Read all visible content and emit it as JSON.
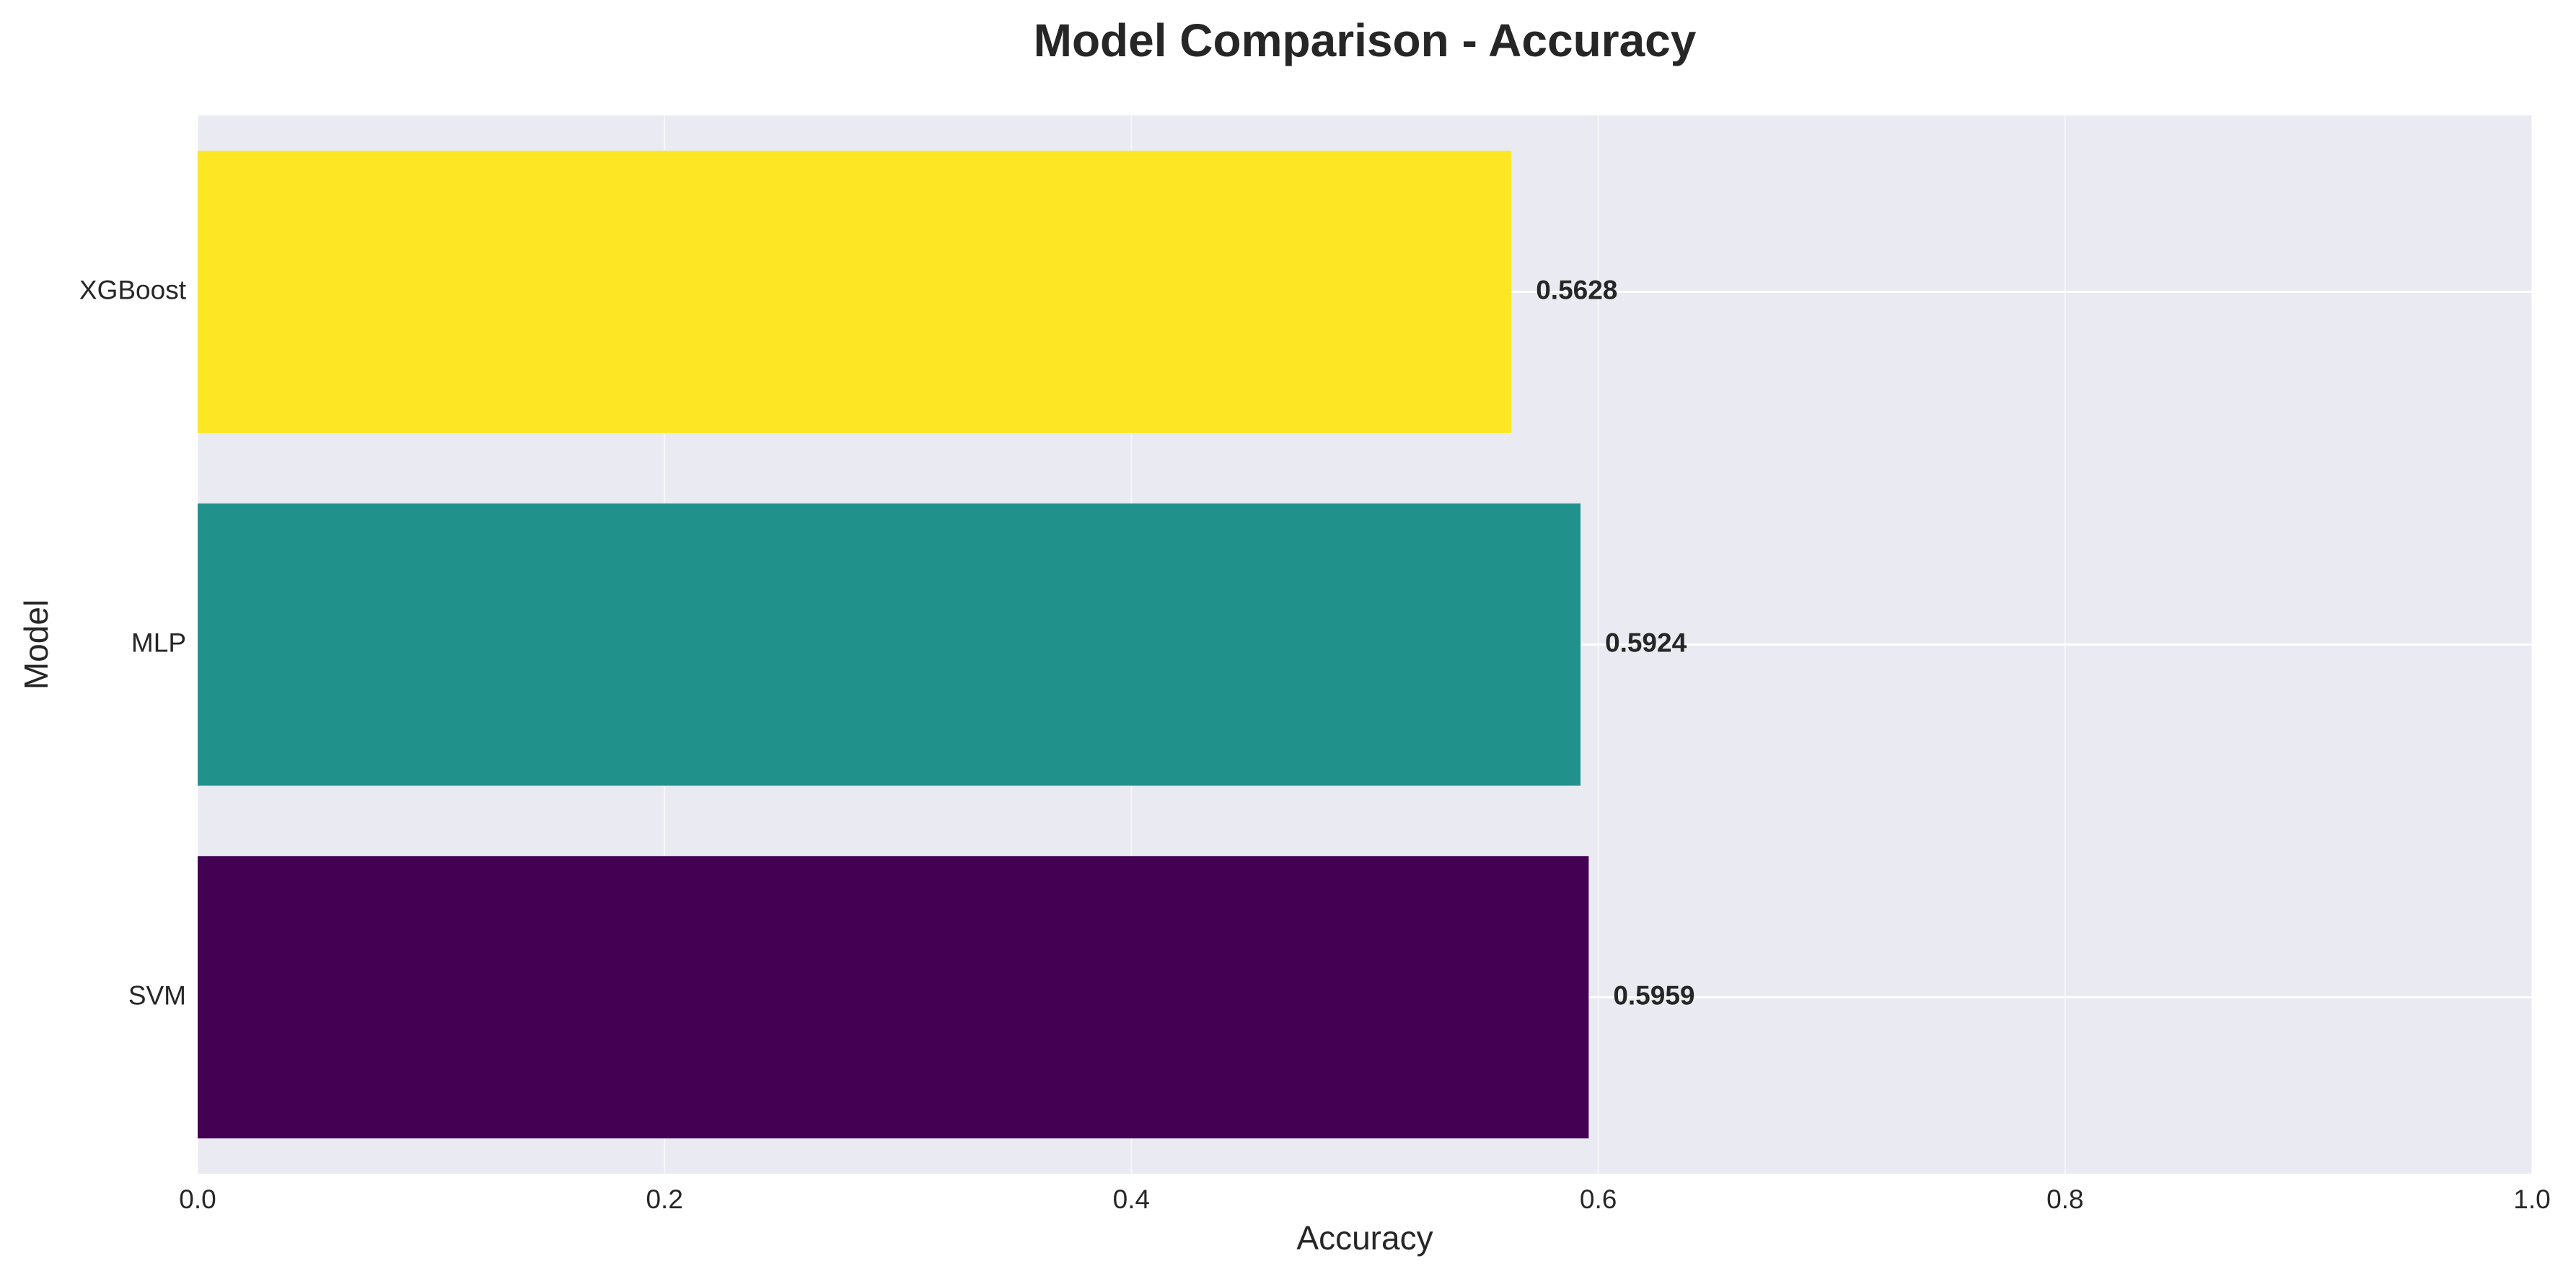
{
  "chart_data": {
    "type": "bar",
    "orientation": "horizontal",
    "title": "Model Comparison - Accuracy",
    "xlabel": "Accuracy",
    "ylabel": "Model",
    "categories": [
      "SVM",
      "MLP",
      "XGBoost"
    ],
    "values": [
      0.5959,
      0.5924,
      0.5628
    ],
    "value_labels": [
      "0.5959",
      "0.5924",
      "0.5628"
    ],
    "bar_colors": [
      "#440154",
      "#21918c",
      "#fde725"
    ],
    "xlim": [
      0,
      1.0
    ],
    "xticks": [
      0.0,
      0.2,
      0.4,
      0.6,
      0.8,
      1.0
    ],
    "xtick_labels": [
      "0.0",
      "0.2",
      "0.4",
      "0.6",
      "0.8",
      "1.0"
    ],
    "grid": true,
    "plot_background": "#eaeaf2",
    "grid_color": "#ffffff"
  }
}
